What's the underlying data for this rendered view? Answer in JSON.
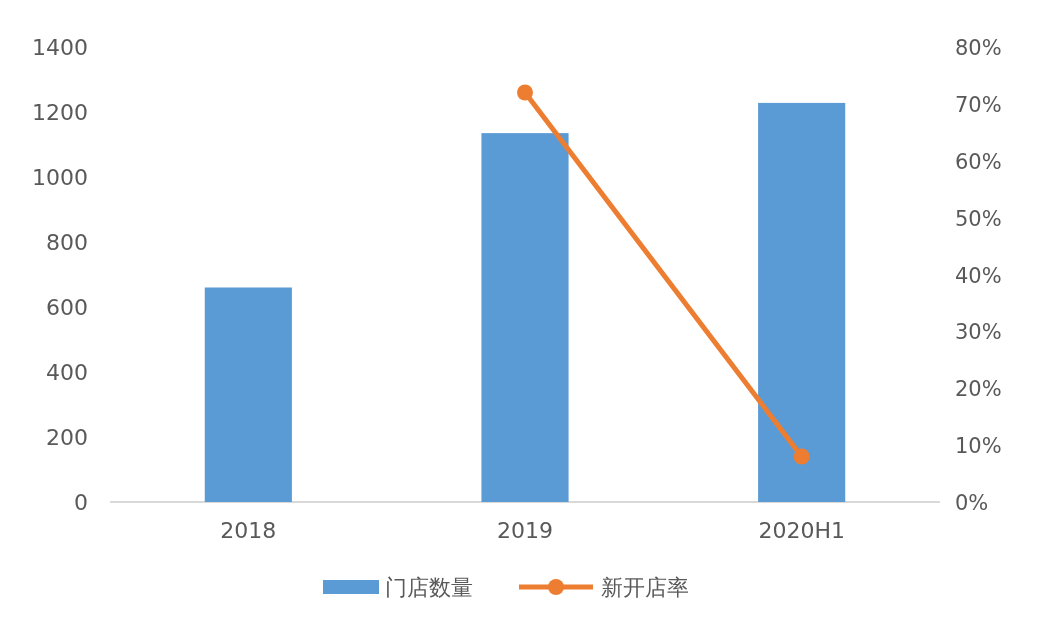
{
  "chart_data": {
    "type": "bar",
    "categories": [
      "2018",
      "2019",
      "2020H1"
    ],
    "series": [
      {
        "name": "门店数量",
        "color": "#5b9bd5",
        "values": [
          660,
          1135,
          1228
        ]
      },
      {
        "name": "新开店率",
        "type": "line",
        "color": "#ed7d31",
        "axis": "y2",
        "marker": "circle",
        "values": [
          null,
          72,
          8
        ]
      }
    ],
    "ylim": [
      0,
      1400
    ],
    "yticks": [
      0,
      200,
      400,
      600,
      800,
      1000,
      1200,
      1400
    ],
    "y2lim": [
      0,
      80
    ],
    "y2ticks": [
      {
        "value": 0,
        "label": "0%"
      },
      {
        "value": 10,
        "label": "10%"
      },
      {
        "value": 20,
        "label": "20%"
      },
      {
        "value": 30,
        "label": "30%"
      },
      {
        "value": 40,
        "label": "40%"
      },
      {
        "value": 50,
        "label": "50%"
      },
      {
        "value": 60,
        "label": "60%"
      },
      {
        "value": 70,
        "label": "70%"
      },
      {
        "value": 80,
        "label": "80%"
      }
    ],
    "grid": false,
    "legend": "bottom"
  }
}
